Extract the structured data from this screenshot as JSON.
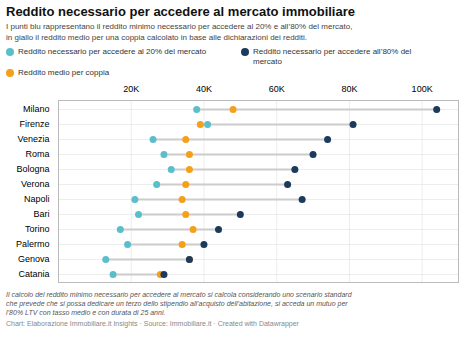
{
  "chart_data": {
    "type": "dumbbell",
    "title": "Reddito necessario per accedere al mercato immobiliare",
    "subtitle": "I punti blu rappresentano il reddito minimo necessario per accedere al 20% e all’80% del mercato,\nin giallo il reddito medio per una coppia calcolato in base alle dichiarazioni dei redditi.",
    "footnote": "Il calcolo del reddito minimo necessario per accedere al mercato si calcola considerando uno scenario standard\nche prevede che si possa dedicare un terzo dello stipendio all’acquisto dell’abitazione, si acceda un mutuo per\nl’80% LTV con tasso medio e con durata di 25 anni.",
    "source": "Chart: Elaborazione Immobiliare.it Insights · Source: Immobiliare.it · Created with Datawrapper",
    "categories": [
      "Milano",
      "Firenze",
      "Venezia",
      "Roma",
      "Bologna",
      "Verona",
      "Napoli",
      "Bari",
      "Torino",
      "Palermo",
      "Genova",
      "Catania"
    ],
    "series": [
      {
        "name": "Reddito necessario per accedere al 20% del mercato",
        "color": "#5BBECB",
        "values": [
          38000,
          41000,
          26000,
          29000,
          31000,
          27000,
          21000,
          22000,
          17000,
          19000,
          13000,
          15000
        ]
      },
      {
        "name": "Reddito necessario per accedere all’80% del\nmercato",
        "color": "#1B3A5C",
        "values": [
          104000,
          81000,
          74000,
          70000,
          65000,
          63000,
          67000,
          50000,
          44000,
          40000,
          36000,
          29000
        ]
      },
      {
        "name": "Reddito medio per coppia",
        "color": "#F5A01A",
        "values": [
          48000,
          39000,
          35000,
          36000,
          36000,
          35000,
          34000,
          35000,
          37000,
          34000,
          36000,
          28000
        ]
      }
    ],
    "xlim": [
      0,
      110000
    ],
    "xticks": [
      {
        "value": 20000,
        "label": "20K"
      },
      {
        "value": 40000,
        "label": "40K"
      },
      {
        "value": 60000,
        "label": "60K"
      },
      {
        "value": 80000,
        "label": "80K"
      },
      {
        "value": 100000,
        "label": "100K"
      }
    ],
    "grid": true,
    "legend": "top"
  }
}
